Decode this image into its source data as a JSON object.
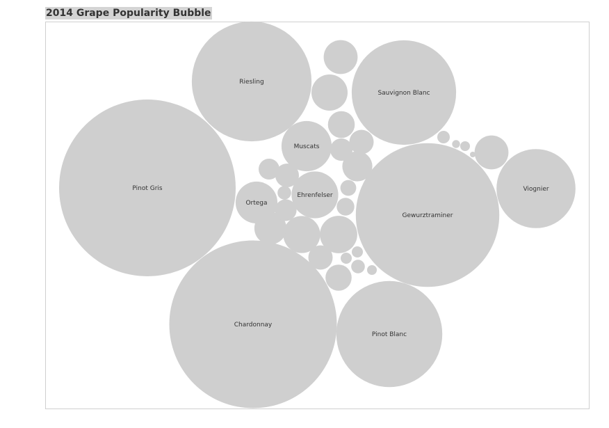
{
  "chart_title": "2014 Grape Popularity Bubble",
  "colors": {
    "bubble": "#cfcfcf",
    "title_bg": "#d4d4d4",
    "frame": "#cfcfcf",
    "text": "#333333"
  },
  "chart_data": {
    "type": "bubble",
    "title": "2014 Grape Popularity Bubble",
    "series": [
      {
        "name": "Pinot Gris",
        "value": 100
      },
      {
        "name": "Chardonnay",
        "value": 90
      },
      {
        "name": "Gewurztraminer",
        "value": 66
      },
      {
        "name": "Riesling",
        "value": 46
      },
      {
        "name": "Sauvignon Blanc",
        "value": 35
      },
      {
        "name": "Pinot Blanc",
        "value": 36
      },
      {
        "name": "Viognier",
        "value": 20
      },
      {
        "name": "Muscats",
        "value": 8.1
      },
      {
        "name": "Ehrenfelser",
        "value": 7
      },
      {
        "name": "Ortega",
        "value": 5.6
      },
      {
        "name": "",
        "value": 4.5
      },
      {
        "name": "",
        "value": 4.4
      },
      {
        "name": "",
        "value": 3.7
      },
      {
        "name": "",
        "value": 4.2
      },
      {
        "name": "",
        "value": 3.7
      },
      {
        "name": "",
        "value": 3.3
      },
      {
        "name": "",
        "value": 2.9
      },
      {
        "name": "",
        "value": 2.3
      },
      {
        "name": "",
        "value": 2.2
      },
      {
        "name": "",
        "value": 1.9
      },
      {
        "name": "",
        "value": 1.9
      },
      {
        "name": "",
        "value": 1.8
      },
      {
        "name": "",
        "value": 1.6
      },
      {
        "name": "",
        "value": 1.5
      },
      {
        "name": "",
        "value": 1.4
      },
      {
        "name": "",
        "value": 1.0
      },
      {
        "name": "",
        "value": 0.8
      },
      {
        "name": "",
        "value": 0.6
      },
      {
        "name": "",
        "value": 0.6
      },
      {
        "name": "",
        "value": 0.5
      },
      {
        "name": "",
        "value": 0.4
      },
      {
        "name": "",
        "value": 0.4
      },
      {
        "name": "",
        "value": 0.3
      },
      {
        "name": "",
        "value": 0.3
      },
      {
        "name": "",
        "value": 0.2
      },
      {
        "name": "",
        "value": 0.1
      }
    ]
  }
}
